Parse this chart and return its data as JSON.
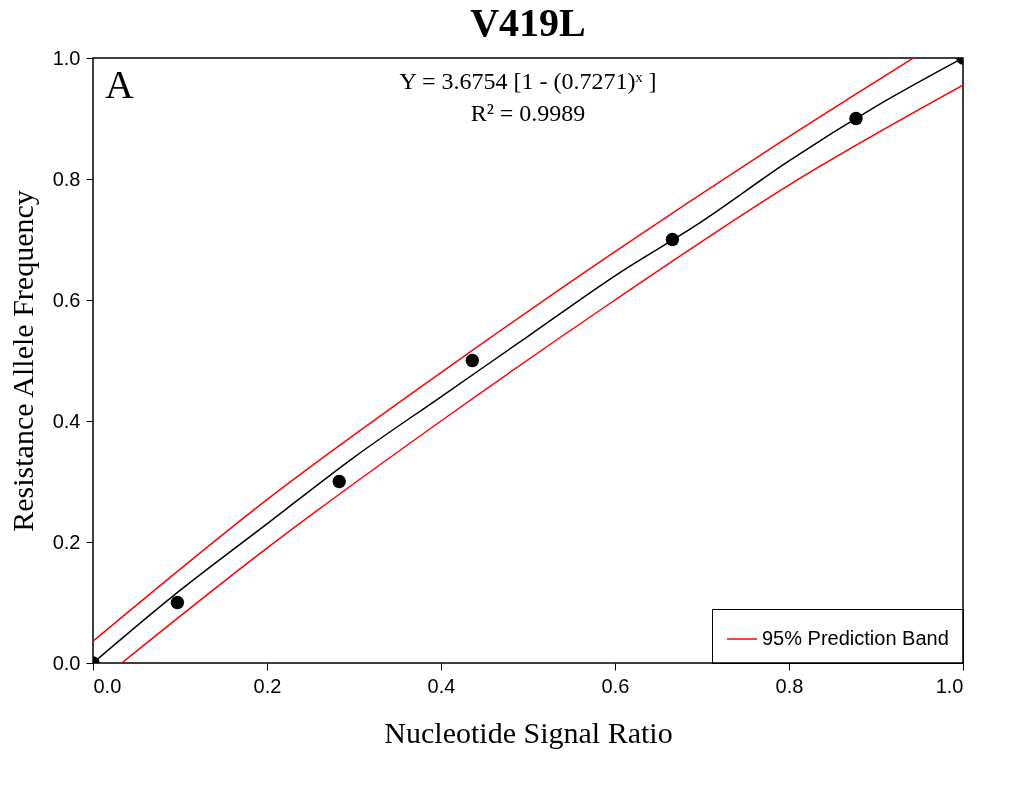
{
  "chart_data": {
    "type": "line",
    "title": "V419L",
    "xlabel": "Nucleotide Signal Ratio",
    "ylabel": "Resistance Allele Frequency",
    "annotations": [
      "A",
      "Y = 3.6754 [1 - (0.7271)ˣ ]",
      "R² = 0.9989"
    ],
    "xlim": [
      0,
      1
    ],
    "ylim": [
      0,
      1
    ],
    "xticks": [
      {
        "value": 0,
        "label": "0.0"
      },
      {
        "value": 0.2,
        "label": "0.2"
      },
      {
        "value": 0.4,
        "label": "0.4"
      },
      {
        "value": 0.6,
        "label": "0.6"
      },
      {
        "value": 0.8,
        "label": "0.8"
      },
      {
        "value": 1,
        "label": "1.0"
      }
    ],
    "yticks": [
      {
        "value": 0,
        "label": "0.0"
      },
      {
        "value": 0.2,
        "label": "0.2"
      },
      {
        "value": 0.4,
        "label": "0.4"
      },
      {
        "value": 0.6,
        "label": "0.6"
      },
      {
        "value": 0.8,
        "label": "0.8"
      },
      {
        "value": 1,
        "label": "1.0"
      }
    ],
    "series": [
      {
        "type": "scatter",
        "marker": "circle",
        "color": "#000000",
        "x": [
          0,
          0.097,
          0.283,
          0.436,
          0.666,
          0.877,
          1
        ],
        "values": [
          0,
          0.1,
          0.3,
          0.5,
          0.7,
          0.9,
          1
        ]
      },
      {
        "color": "#000000",
        "x": [
          0,
          0.1,
          0.2,
          0.3,
          0.4,
          0.5,
          0.6,
          0.7,
          0.8,
          0.9,
          1
        ],
        "values": [
          0,
          0.12,
          0.23,
          0.34,
          0.44,
          0.54,
          0.64,
          0.73,
          0.83,
          0.92,
          1
        ]
      },
      {
        "type": "line",
        "name": "95% Prediction Band",
        "color": "#ff0000",
        "x": [
          0,
          0.2,
          0.4,
          0.6,
          0.8,
          0.943
        ],
        "values": [
          0.036,
          0.27,
          0.48,
          0.68,
          0.87,
          1
        ]
      },
      {
        "type": "line",
        "color": "#ff0000",
        "x": [
          0.033,
          0.2,
          0.4,
          0.6,
          0.8,
          1
        ],
        "values": [
          0,
          0.19,
          0.4,
          0.6,
          0.79,
          0.955
        ]
      }
    ],
    "grid": false,
    "legend": "bottom right"
  }
}
